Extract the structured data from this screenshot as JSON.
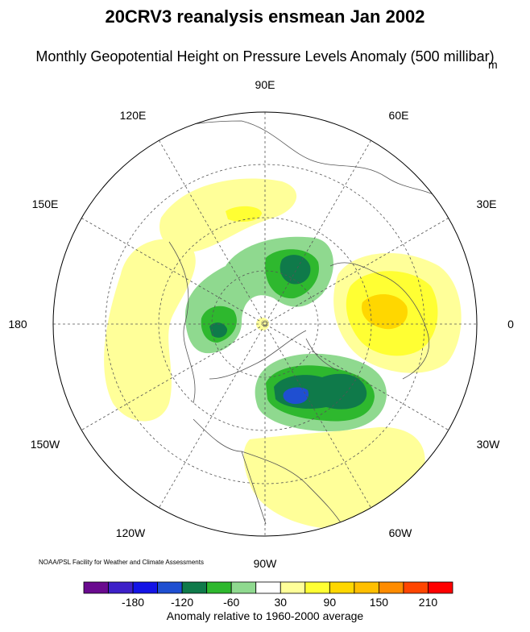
{
  "title": "20CRV3 reanalysis ensmean Jan 2002",
  "subtitle": "Monthly Geopotential Height on Pressure Levels Anomaly (500 millibar)",
  "units": "m",
  "credit": "NOAA/PSL Facility for Weather and Climate Assessments",
  "longitude_labels": {
    "e90": "90E",
    "e60": "60E",
    "e30": "30E",
    "zero": "0",
    "w30": "30W",
    "w60": "60W",
    "w90": "90W",
    "w120": "120W",
    "w150": "150W",
    "lon180": "180",
    "e150": "150E",
    "e120": "120E"
  },
  "colorbar": {
    "title": "Anomaly relative to 1960-2000 average",
    "tick_labels": [
      "-180",
      "-120",
      "-60",
      "30",
      "90",
      "150",
      "210"
    ],
    "colors": [
      "#6a0a8f",
      "#3d20c8",
      "#1414e6",
      "#1f4fd1",
      "#0f7a4a",
      "#2eb82e",
      "#8fd98f",
      "#ffffff",
      "#ffff99",
      "#ffff33",
      "#ffd700",
      "#ffbf00",
      "#ff8c00",
      "#ff4500",
      "#ff0000"
    ]
  },
  "colors": {
    "weak_positive": "#ffff99",
    "positive": "#ffff33",
    "strong_positive": "#ffd700",
    "weak_negative": "#8fd98f",
    "negative": "#2eb82e",
    "strong_negative": "#0f7a4a",
    "very_strong_negative": "#1f4fd1"
  }
}
